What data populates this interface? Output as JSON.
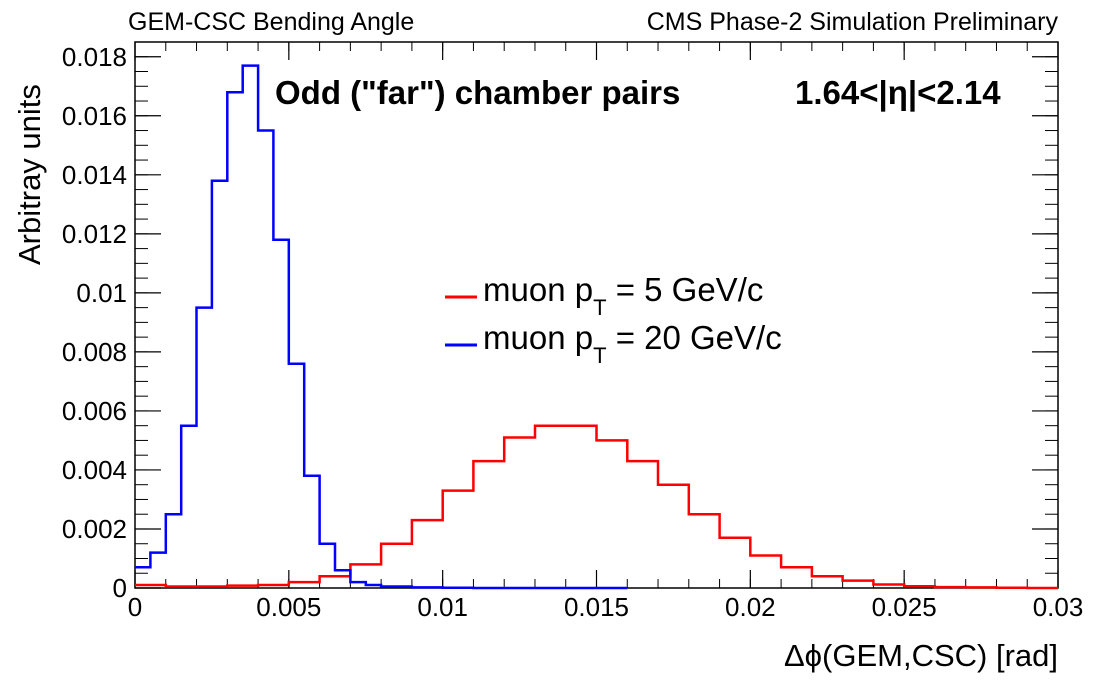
{
  "header": {
    "left": "GEM-CSC Bending Angle",
    "right": "CMS Phase-2 Simulation Preliminary"
  },
  "annotation": {
    "left": "Odd (\"far\") chamber pairs",
    "right": "1.64<|η|<2.14"
  },
  "chart_data": {
    "type": "line",
    "xlabel": "Δϕ(GEM,CSC) [rad]",
    "ylabel": "Arbitray units",
    "xlim": [
      0,
      0.03
    ],
    "ylim": [
      0,
      0.0185
    ],
    "x_ticks": [
      "0",
      "0.005",
      "0.01",
      "0.015",
      "0.02",
      "0.025",
      "0.03"
    ],
    "y_ticks": [
      "0",
      "0.002",
      "0.004",
      "0.006",
      "0.008",
      "0.01",
      "0.012",
      "0.014",
      "0.016",
      "0.018"
    ],
    "grid": false,
    "legend_placement": "center-right",
    "series": [
      {
        "legend_main": "muon p",
        "legend_sub": "T",
        "legend_value": " = 5 GeV/c",
        "color": "#ff0000",
        "x": [
          0.0,
          0.001,
          0.002,
          0.003,
          0.004,
          0.005,
          0.006,
          0.007,
          0.008,
          0.009,
          0.01,
          0.011,
          0.012,
          0.013,
          0.014,
          0.015,
          0.016,
          0.017,
          0.018,
          0.019,
          0.02,
          0.021,
          0.022,
          0.023,
          0.024,
          0.025,
          0.026,
          0.027,
          0.028,
          0.029,
          0.03
        ],
        "y": [
          0.0001,
          5e-05,
          5e-05,
          8e-05,
          0.0001,
          0.0002,
          0.0004,
          0.0008,
          0.0015,
          0.0023,
          0.0033,
          0.0043,
          0.0051,
          0.0055,
          0.0055,
          0.005,
          0.0043,
          0.0035,
          0.0025,
          0.0017,
          0.0011,
          0.0007,
          0.0004,
          0.00025,
          0.00012,
          6e-05,
          3e-05,
          2e-05,
          1e-05,
          0.0,
          0.0
        ]
      },
      {
        "legend_main": "muon p",
        "legend_sub": "T",
        "legend_value": " = 20 GeV/c",
        "color": "#0000ff",
        "x": [
          0.0,
          0.0005,
          0.001,
          0.0015,
          0.002,
          0.0025,
          0.003,
          0.0035,
          0.004,
          0.0045,
          0.005,
          0.0055,
          0.006,
          0.0065,
          0.007,
          0.0075,
          0.008,
          0.009,
          0.01,
          0.011,
          0.012,
          0.013,
          0.014,
          0.015
        ],
        "y": [
          0.0007,
          0.0012,
          0.0025,
          0.0055,
          0.0095,
          0.0138,
          0.0168,
          0.0177,
          0.0155,
          0.0118,
          0.0076,
          0.0038,
          0.0015,
          0.0006,
          0.0002,
          0.0001,
          5e-05,
          2e-05,
          1e-05,
          0.0,
          0.0,
          0.0,
          0.0,
          0.0
        ]
      }
    ]
  }
}
